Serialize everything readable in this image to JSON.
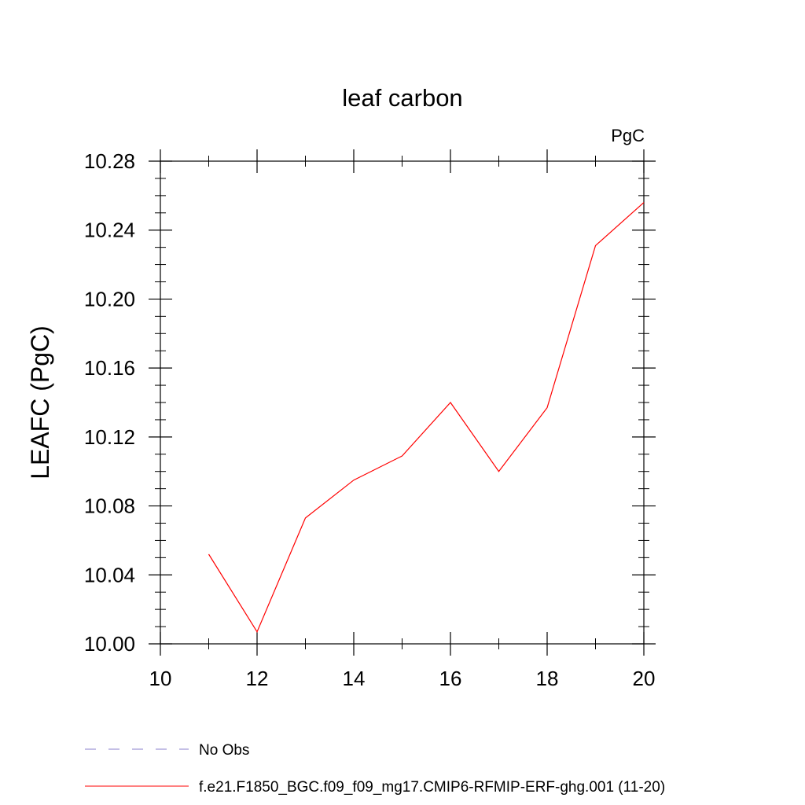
{
  "chart_data": {
    "type": "line",
    "title": "leaf carbon",
    "units_label": "PgC",
    "xlabel": "",
    "ylabel": "LEAFC  (PgC)",
    "xlim": [
      10,
      20
    ],
    "ylim": [
      10.0,
      10.28
    ],
    "xticks": [
      10,
      12,
      14,
      16,
      18,
      20
    ],
    "yticks": [
      10.0,
      10.04,
      10.08,
      10.12,
      10.16,
      10.2,
      10.24,
      10.28
    ],
    "ytick_labels": [
      "10.00",
      "10.04",
      "10.08",
      "10.12",
      "10.16",
      "10.20",
      "10.24",
      "10.28"
    ],
    "grid": false,
    "legend_position": "bottom",
    "series": [
      {
        "name": "f.e21.F1850_BGC.f09_f09_mg17.CMIP6-RFMIP-ERF-ghg.001 (11-20)",
        "color": "#ff0000",
        "style": "solid",
        "x": [
          11,
          12,
          13,
          14,
          15,
          16,
          17,
          18,
          19,
          20
        ],
        "y": [
          10.052,
          10.007,
          10.073,
          10.095,
          10.109,
          10.14,
          10.1,
          10.137,
          10.231,
          10.256
        ]
      }
    ],
    "legend": [
      {
        "label": "No Obs",
        "color": "#8a7fcc",
        "style": "dashed"
      },
      {
        "label": "f.e21.F1850_BGC.f09_f09_mg17.CMIP6-RFMIP-ERF-ghg.001 (11-20)",
        "color": "#ff0000",
        "style": "solid"
      }
    ]
  }
}
